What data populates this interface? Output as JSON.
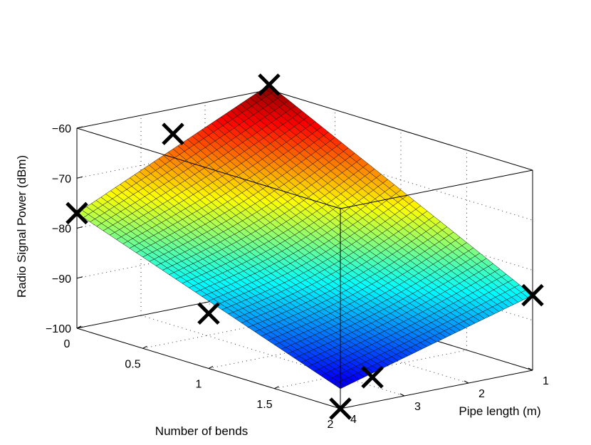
{
  "chart_data": {
    "type": "surface3d",
    "title": "",
    "xlabel": "Number of bends",
    "ylabel": "Pipe length (m)",
    "zlabel": "Radio Signal Power (dBm)",
    "xlim": [
      0,
      2
    ],
    "ylim": [
      1,
      4
    ],
    "zlim": [
      -100,
      -60
    ],
    "x_ticks": [
      "0",
      "0.5",
      "1",
      "1.5",
      "2"
    ],
    "y_ticks": [
      "1",
      "2",
      "3",
      "4"
    ],
    "z_ticks": [
      "−60",
      "−70",
      "−80",
      "−90",
      "−100"
    ],
    "x_tick_values": [
      0,
      0.5,
      1,
      1.5,
      2
    ],
    "y_tick_values": [
      1,
      2,
      3,
      4
    ],
    "z_tick_values": [
      -60,
      -70,
      -80,
      -90,
      -100
    ],
    "grid": true,
    "colormap": "jet",
    "surface_corners": [
      {
        "bends": 0,
        "length": 1,
        "power": -59
      },
      {
        "bends": 0,
        "length": 4,
        "power": -77
      },
      {
        "bends": 2,
        "length": 1,
        "power": -85
      },
      {
        "bends": 2,
        "length": 4,
        "power": -96
      }
    ],
    "markers": [
      {
        "bends": 0,
        "length": 1,
        "power": -59
      },
      {
        "bends": 0,
        "length": 2.5,
        "power": -65
      },
      {
        "bends": 0,
        "length": 4,
        "power": -77
      },
      {
        "bends": 2,
        "length": 1,
        "power": -85
      },
      {
        "bends": 1,
        "length": 4,
        "power": -89
      },
      {
        "bends": 2,
        "length": 3.5,
        "power": -95
      },
      {
        "bends": 2,
        "length": 4,
        "power": -100
      }
    ]
  }
}
